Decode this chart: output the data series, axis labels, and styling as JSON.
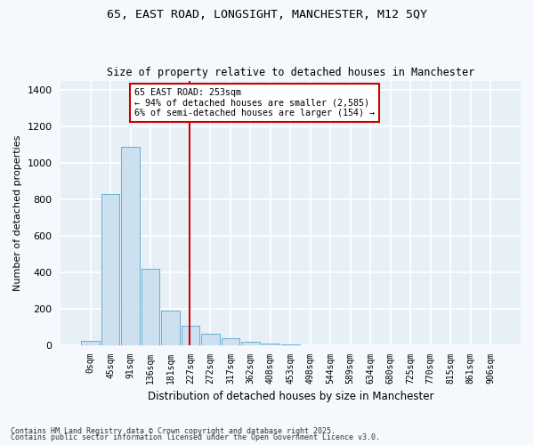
{
  "title_line1": "65, EAST ROAD, LONGSIGHT, MANCHESTER, M12 5QY",
  "title_line2": "Size of property relative to detached houses in Manchester",
  "xlabel": "Distribution of detached houses by size in Manchester",
  "ylabel": "Number of detached properties",
  "bar_color": "#cde0ef",
  "bar_edge_color": "#6aaed6",
  "background_color": "#e8f0f7",
  "fig_background_color": "#f5f8fc",
  "grid_color": "#ffffff",
  "categories": [
    "0sqm",
    "45sqm",
    "91sqm",
    "136sqm",
    "181sqm",
    "227sqm",
    "272sqm",
    "317sqm",
    "362sqm",
    "408sqm",
    "453sqm",
    "498sqm",
    "544sqm",
    "589sqm",
    "634sqm",
    "680sqm",
    "725sqm",
    "770sqm",
    "815sqm",
    "861sqm",
    "906sqm"
  ],
  "values": [
    25,
    830,
    1090,
    420,
    190,
    110,
    65,
    40,
    22,
    10,
    5,
    2,
    1,
    0,
    0,
    0,
    0,
    0,
    0,
    0,
    0
  ],
  "ylim": [
    0,
    1450
  ],
  "yticks": [
    0,
    200,
    400,
    600,
    800,
    1000,
    1200,
    1400
  ],
  "red_line_x": 4.97,
  "annotation_text": "65 EAST ROAD: 253sqm\n← 94% of detached houses are smaller (2,585)\n6% of semi-detached houses are larger (154) →",
  "annotation_box_color": "#ffffff",
  "annotation_box_edge_color": "#cc0000",
  "footnote_line1": "Contains HM Land Registry data © Crown copyright and database right 2025.",
  "footnote_line2": "Contains public sector information licensed under the Open Government Licence v3.0."
}
